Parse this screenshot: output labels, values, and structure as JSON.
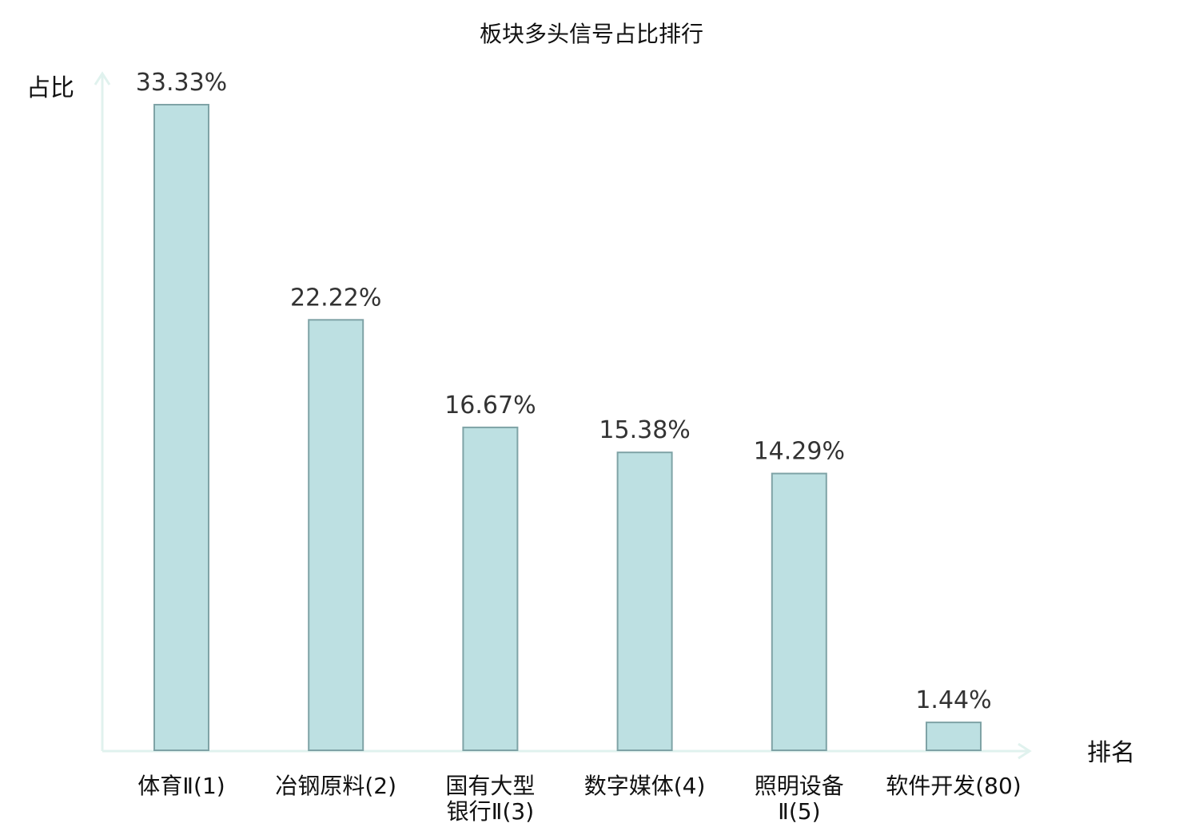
{
  "chart_data": {
    "type": "bar",
    "title": "板块多头信号占比排行",
    "ylabel": "占比",
    "xlabel": "排名",
    "ylim": [
      0,
      33.33
    ],
    "categories": [
      {
        "name": "体育Ⅱ",
        "rank": "(1)",
        "lines": [
          "体育Ⅱ(1)"
        ],
        "highlight": false
      },
      {
        "name": "冶钢原料",
        "rank": "(2)",
        "lines": [
          "冶钢原料(2)"
        ],
        "highlight": false
      },
      {
        "name": "国有大型银行Ⅱ",
        "rank": "(3)",
        "lines": [
          "国有大型",
          "银行Ⅱ(3)"
        ],
        "highlight": false
      },
      {
        "name": "数字媒体",
        "rank": "(4)",
        "lines": [
          "数字媒体(4)"
        ],
        "highlight": false
      },
      {
        "name": "照明设备Ⅱ",
        "rank": "(5)",
        "lines": [
          "照明设备",
          "Ⅱ(5)"
        ],
        "highlight": false
      },
      {
        "name": "软件开发",
        "rank": "(80)",
        "lines": [
          "软件开发(80)"
        ],
        "highlight": true
      }
    ],
    "values": [
      33.33,
      22.22,
      16.67,
      15.38,
      14.29,
      1.44
    ],
    "value_labels": [
      "33.33%",
      "22.22%",
      "16.67%",
      "15.38%",
      "14.29%",
      "1.44%"
    ],
    "grid": false,
    "legend": "none"
  },
  "colors": {
    "bar_fill": "#bde0e2",
    "bar_stroke": "#7fa3a6",
    "axis": "#e0f2ee",
    "highlight_text": "#e02020",
    "text": "#111111",
    "value_text": "#333333"
  }
}
